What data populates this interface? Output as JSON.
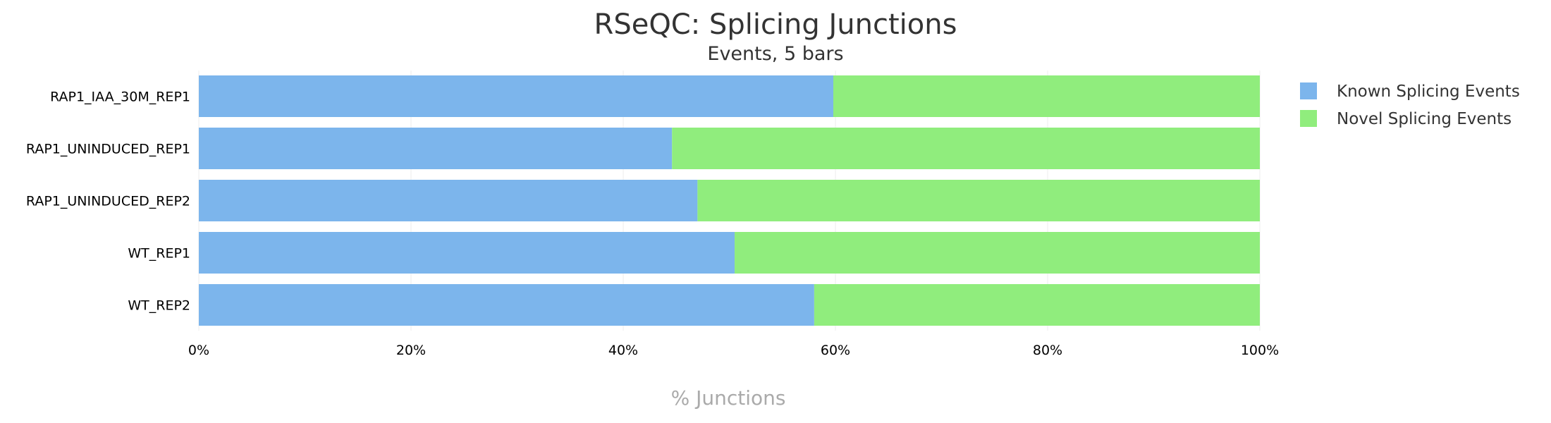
{
  "chart_data": {
    "type": "bar",
    "orientation": "horizontal",
    "stacked": "percent",
    "title": "RSeQC: Splicing Junctions",
    "subtitle": "Events, 5 bars",
    "xlabel": "% Junctions",
    "ylabel": "",
    "xlim": [
      0,
      100
    ],
    "x_ticks": [
      "0%",
      "20%",
      "40%",
      "60%",
      "80%",
      "100%"
    ],
    "categories": [
      "RAP1_IAA_30M_REP1",
      "RAP1_UNINDUCED_REP1",
      "RAP1_UNINDUCED_REP2",
      "WT_REP1",
      "WT_REP2"
    ],
    "series": [
      {
        "name": "Known Splicing Events",
        "color": "#7cb5ec",
        "values": [
          59.8,
          44.6,
          47.0,
          50.5,
          58.0
        ]
      },
      {
        "name": "Novel Splicing Events",
        "color": "#90ed7d",
        "values": [
          40.2,
          55.4,
          53.0,
          49.5,
          42.0
        ]
      }
    ],
    "legend_position": "top-right",
    "grid": true
  }
}
